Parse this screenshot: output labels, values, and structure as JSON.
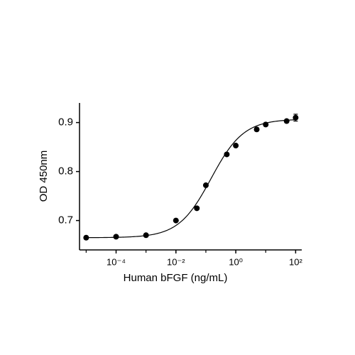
{
  "chart_data": {
    "type": "scatter",
    "xlabel": "Human bFGF (ng/mL)",
    "ylabel": "OD 450nm",
    "x_scale": "log",
    "x": [
      1e-05,
      0.0001,
      0.001,
      0.01,
      0.05,
      0.1,
      0.5,
      1,
      5,
      10,
      50,
      100
    ],
    "series": [
      {
        "color": "#000000",
        "values": [
          0.665,
          0.667,
          0.67,
          0.7,
          0.725,
          0.772,
          0.835,
          0.853,
          0.886,
          0.896,
          0.903,
          0.91
        ],
        "errors": [
          0.002,
          0.002,
          0.002,
          0.002,
          0.002,
          0.002,
          0.002,
          0.002,
          0.002,
          0.003,
          0.003,
          0.007
        ]
      }
    ],
    "fit": {
      "model": "4PL",
      "bottom": 0.665,
      "top": 0.907,
      "ec50": 0.15,
      "hill": 0.8
    },
    "xlim": [
      6e-06,
      160
    ],
    "ylim": [
      0.64,
      0.94
    ],
    "xticks": [
      {
        "value": 0.0001,
        "label": "10⁻⁴"
      },
      {
        "value": 0.01,
        "label": "10⁻²"
      },
      {
        "value": 1,
        "label": "10⁰"
      },
      {
        "value": 100,
        "label": "10²"
      }
    ],
    "xminor_ticks": [
      1e-05,
      0.001,
      0.1,
      10
    ],
    "yticks": [
      0.7,
      0.8,
      0.9
    ],
    "grid": false
  }
}
